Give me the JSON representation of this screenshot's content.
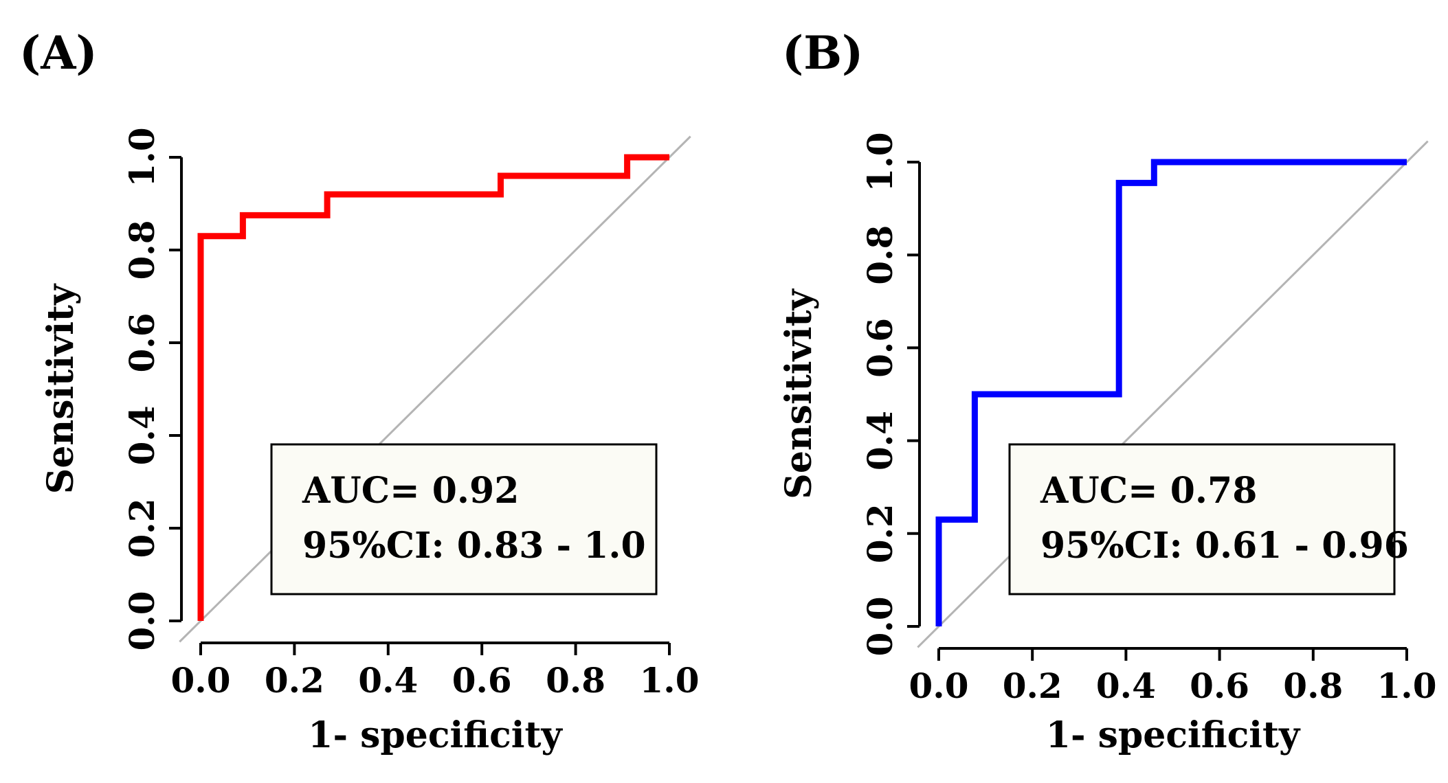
{
  "chart_data": [
    {
      "type": "line",
      "panel_label": "(A)",
      "title": "",
      "xlabel": "1- specificity",
      "ylabel": "Sensitivity",
      "xlim": [
        0,
        1
      ],
      "ylim": [
        0,
        1
      ],
      "x_ticks": [
        "0.0",
        "0.2",
        "0.4",
        "0.6",
        "0.8",
        "1.0"
      ],
      "y_ticks": [
        "0.0",
        "0.2",
        "0.4",
        "0.6",
        "0.8",
        "1.0"
      ],
      "color": "#ff0000",
      "diagonal_color": "#b4b4b4",
      "series": [
        {
          "name": "ROC",
          "x": [
            0.0,
            0.0,
            0.09,
            0.09,
            0.27,
            0.27,
            0.64,
            0.64,
            0.91,
            0.91,
            1.0
          ],
          "y": [
            0.0,
            0.83,
            0.83,
            0.875,
            0.875,
            0.92,
            0.92,
            0.96,
            0.96,
            1.0,
            1.0
          ]
        }
      ],
      "annotation": {
        "auc_text": "AUC= 0.92",
        "ci_text": "95%CI: 0.83 - 1.0"
      }
    },
    {
      "type": "line",
      "panel_label": "(B)",
      "title": "",
      "xlabel": "1- specificity",
      "ylabel": "Sensitivity",
      "xlim": [
        0,
        1
      ],
      "ylim": [
        0,
        1
      ],
      "x_ticks": [
        "0.0",
        "0.2",
        "0.4",
        "0.6",
        "0.8",
        "1.0"
      ],
      "y_ticks": [
        "0.0",
        "0.2",
        "0.4",
        "0.6",
        "0.8",
        "1.0"
      ],
      "color": "#0000ff",
      "diagonal_color": "#b4b4b4",
      "series": [
        {
          "name": "ROC",
          "x": [
            0.0,
            0.0,
            0.077,
            0.077,
            0.385,
            0.385,
            0.46,
            0.46,
            1.0
          ],
          "y": [
            0.0,
            0.23,
            0.23,
            0.5,
            0.5,
            0.955,
            0.955,
            1.0,
            1.0
          ]
        }
      ],
      "annotation": {
        "auc_text": "AUC= 0.78",
        "ci_text": "95%CI: 0.61 - 0.96"
      }
    }
  ]
}
